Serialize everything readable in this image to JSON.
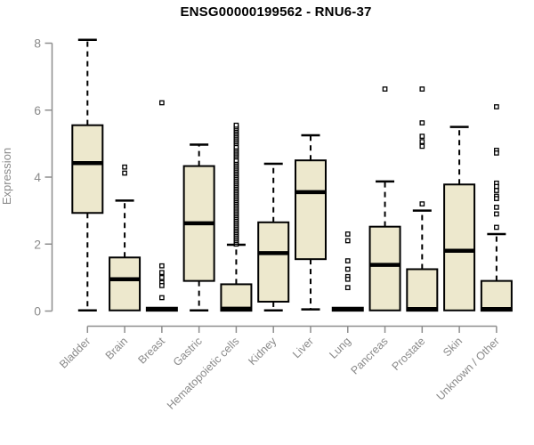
{
  "chart_data": {
    "type": "boxplot",
    "title": "ENSG00000199562 - RNU6-37",
    "ylabel": "Expression",
    "xlabel": "",
    "ylim": [
      0,
      8
    ],
    "yticks": [
      "0",
      "2",
      "4",
      "6",
      "8"
    ],
    "grid": false,
    "legend": false,
    "colors": {
      "box_fill": "#EDE8CD",
      "box_stroke": "#000000",
      "median": "#000000",
      "whisker": "#000000",
      "outlier_stroke": "#000000",
      "outlier_fill": "#ffffff",
      "axis": "#8e8e8e",
      "tick_label": "#8a8a8a",
      "title": "#000000",
      "background": "#ffffff"
    },
    "categories": [
      "Bladder",
      "Brain",
      "Breast",
      "Gastric",
      "Hematopoietic cells",
      "Kidney",
      "Liver",
      "Lung",
      "Pancreas",
      "Prostate",
      "Skin",
      "Unknown / Other"
    ],
    "series": [
      {
        "name": "Bladder",
        "low": 0.02,
        "q1": 2.93,
        "median": 4.42,
        "q3": 5.55,
        "high": 8.1,
        "outliers": []
      },
      {
        "name": "Brain",
        "low": 0.0,
        "q1": 0.02,
        "median": 0.95,
        "q3": 1.6,
        "high": 3.3,
        "outliers": [
          4.3,
          4.12
        ]
      },
      {
        "name": "Breast",
        "low": 0.0,
        "q1": 0.01,
        "median": 0.05,
        "q3": 0.1,
        "high": 0.12,
        "outliers": [
          6.22,
          1.35,
          1.15,
          1.0,
          0.85,
          0.76,
          0.4
        ]
      },
      {
        "name": "Gastric",
        "low": 0.02,
        "q1": 0.9,
        "median": 2.62,
        "q3": 4.33,
        "high": 4.97,
        "outliers": []
      },
      {
        "name": "Hematopoietic cells",
        "low": 0.0,
        "q1": 0.01,
        "median": 0.07,
        "q3": 0.8,
        "high": 1.98,
        "outliers": [
          2.0,
          2.05,
          2.1,
          2.15,
          2.2,
          2.25,
          2.3,
          2.35,
          2.4,
          2.45,
          2.5,
          2.55,
          2.6,
          2.65,
          2.7,
          2.75,
          2.8,
          2.85,
          2.9,
          2.95,
          3.0,
          3.05,
          3.1,
          3.15,
          3.2,
          3.25,
          3.3,
          3.35,
          3.4,
          3.45,
          3.5,
          3.55,
          3.6,
          3.65,
          3.7,
          3.75,
          3.8,
          3.85,
          3.9,
          3.95,
          4.0,
          4.05,
          4.1,
          4.15,
          4.2,
          4.25,
          4.3,
          4.35,
          4.4,
          4.45,
          4.5,
          4.6,
          4.65,
          4.7,
          4.75,
          4.8,
          4.85,
          4.9,
          5.0,
          5.05,
          5.1,
          5.15,
          5.2,
          5.25,
          5.3,
          5.35,
          5.4,
          5.45,
          5.5,
          5.55
        ]
      },
      {
        "name": "Kidney",
        "low": 0.02,
        "q1": 0.28,
        "median": 1.73,
        "q3": 2.65,
        "high": 4.4,
        "outliers": []
      },
      {
        "name": "Liver",
        "low": 0.05,
        "q1": 1.55,
        "median": 3.55,
        "q3": 4.5,
        "high": 5.25,
        "outliers": []
      },
      {
        "name": "Lung",
        "low": 0.0,
        "q1": 0.01,
        "median": 0.05,
        "q3": 0.1,
        "high": 0.12,
        "outliers": [
          2.3,
          2.1,
          1.5,
          1.25,
          1.03,
          0.95,
          0.7
        ]
      },
      {
        "name": "Pancreas",
        "low": 0.0,
        "q1": 0.02,
        "median": 1.38,
        "q3": 2.52,
        "high": 3.87,
        "outliers": [
          6.63
        ]
      },
      {
        "name": "Prostate",
        "low": 0.0,
        "q1": 0.01,
        "median": 0.06,
        "q3": 1.25,
        "high": 3.0,
        "outliers": [
          6.63,
          5.62,
          5.22,
          5.06,
          4.92,
          3.2
        ]
      },
      {
        "name": "Skin",
        "low": 0.0,
        "q1": 0.02,
        "median": 1.8,
        "q3": 3.78,
        "high": 5.5,
        "outliers": []
      },
      {
        "name": "Unknown / Other",
        "low": 0.0,
        "q1": 0.01,
        "median": 0.06,
        "q3": 0.9,
        "high": 2.3,
        "outliers": [
          6.1,
          4.8,
          4.72,
          3.82,
          3.72,
          3.6,
          3.43,
          3.36,
          3.1,
          2.9,
          2.5
        ]
      }
    ]
  }
}
